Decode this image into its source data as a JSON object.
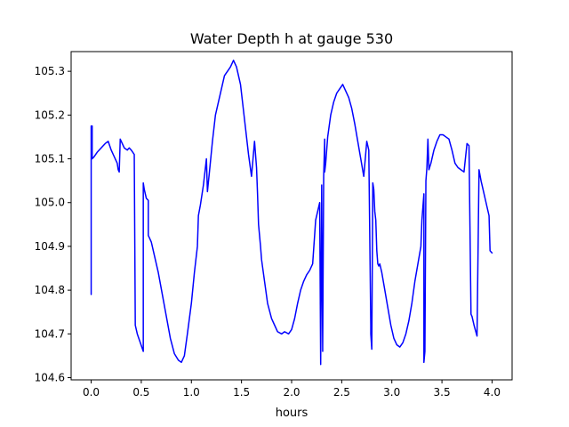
{
  "chart_data": {
    "type": "line",
    "title": "Water Depth h at gauge 530",
    "xlabel": "hours",
    "ylabel": "",
    "xlim": [
      -0.2,
      4.2
    ],
    "ylim": [
      104.595,
      105.345
    ],
    "xticks": [
      0.0,
      0.5,
      1.0,
      1.5,
      2.0,
      2.5,
      3.0,
      3.5,
      4.0
    ],
    "xtick_labels": [
      "0.0",
      "0.5",
      "1.0",
      "1.5",
      "2.0",
      "2.5",
      "3.0",
      "3.5",
      "4.0"
    ],
    "yticks": [
      104.6,
      104.7,
      104.8,
      104.9,
      105.0,
      105.1,
      105.2,
      105.3
    ],
    "ytick_labels": [
      "104.6",
      "104.7",
      "104.8",
      "104.9",
      "105.0",
      "105.1",
      "105.2",
      "105.3"
    ],
    "grid": false,
    "series": [
      {
        "color": "#0000ff",
        "x": [
          0.0,
          0.0,
          0.01,
          0.01,
          0.03,
          0.06,
          0.1,
          0.14,
          0.17,
          0.2,
          0.24,
          0.26,
          0.27,
          0.28,
          0.29,
          0.3,
          0.33,
          0.36,
          0.38,
          0.4,
          0.43,
          0.44,
          0.44,
          0.46,
          0.49,
          0.52,
          0.52,
          0.53,
          0.55,
          0.57,
          0.57,
          0.58,
          0.6,
          0.63,
          0.67,
          0.71,
          0.75,
          0.79,
          0.83,
          0.87,
          0.9,
          0.93,
          0.96,
          1.0,
          1.03,
          1.06,
          1.07,
          1.09,
          1.12,
          1.15,
          1.16,
          1.18,
          1.21,
          1.24,
          1.27,
          1.3,
          1.33,
          1.36,
          1.39,
          1.42,
          1.45,
          1.47,
          1.49,
          1.51,
          1.54,
          1.57,
          1.6,
          1.63,
          1.65,
          1.66,
          1.67,
          1.69,
          1.7,
          1.73,
          1.76,
          1.8,
          1.83,
          1.86,
          1.9,
          1.93,
          1.97,
          2.0,
          2.03,
          2.06,
          2.09,
          2.12,
          2.15,
          2.18,
          2.21,
          2.24,
          2.26,
          2.28,
          2.29,
          2.3,
          2.3,
          2.31,
          2.31,
          2.32,
          2.33,
          2.33,
          2.34,
          2.35,
          2.36,
          2.39,
          2.42,
          2.45,
          2.48,
          2.51,
          2.54,
          2.57,
          2.6,
          2.63,
          2.66,
          2.69,
          2.72,
          2.75,
          2.77,
          2.79,
          2.79,
          2.8,
          2.81,
          2.82,
          2.83,
          2.84,
          2.85,
          2.86,
          2.87,
          2.88,
          2.9,
          2.93,
          2.96,
          2.99,
          3.02,
          3.05,
          3.08,
          3.11,
          3.14,
          3.17,
          3.2,
          3.23,
          3.26,
          3.29,
          3.3,
          3.31,
          3.32,
          3.32,
          3.33,
          3.34,
          3.35,
          3.36,
          3.37,
          3.39,
          3.42,
          3.45,
          3.48,
          3.51,
          3.54,
          3.57,
          3.6,
          3.63,
          3.66,
          3.69,
          3.72,
          3.75,
          3.77,
          3.79,
          3.8,
          3.82,
          3.85,
          3.87,
          3.89,
          3.91,
          3.94,
          3.97,
          3.98,
          4.0
        ],
        "y": [
          104.79,
          105.175,
          105.175,
          105.1,
          105.105,
          105.115,
          105.125,
          105.135,
          105.14,
          105.12,
          105.1,
          105.09,
          105.075,
          105.07,
          105.145,
          105.14,
          105.125,
          105.12,
          105.125,
          105.12,
          105.11,
          104.725,
          104.72,
          104.7,
          104.68,
          104.66,
          105.045,
          105.03,
          105.01,
          105.005,
          104.925,
          104.92,
          104.91,
          104.88,
          104.84,
          104.79,
          104.74,
          104.69,
          104.655,
          104.64,
          104.635,
          104.65,
          104.7,
          104.77,
          104.84,
          104.9,
          104.97,
          104.995,
          105.04,
          105.1,
          105.025,
          105.07,
          105.14,
          105.2,
          105.23,
          105.26,
          105.29,
          105.3,
          105.31,
          105.325,
          105.31,
          105.29,
          105.27,
          105.23,
          105.17,
          105.11,
          105.06,
          105.14,
          105.08,
          105.02,
          104.95,
          104.9,
          104.87,
          104.82,
          104.77,
          104.735,
          104.72,
          104.705,
          104.7,
          104.705,
          104.7,
          104.71,
          104.735,
          104.77,
          104.8,
          104.82,
          104.835,
          104.845,
          104.86,
          104.96,
          104.98,
          105.0,
          104.63,
          105.03,
          105.04,
          104.66,
          104.67,
          105.06,
          105.145,
          105.07,
          105.09,
          105.12,
          105.15,
          105.2,
          105.23,
          105.25,
          105.26,
          105.27,
          105.255,
          105.24,
          105.215,
          105.18,
          105.14,
          105.1,
          105.06,
          105.14,
          105.12,
          104.72,
          104.7,
          104.665,
          105.045,
          105.03,
          104.98,
          104.96,
          104.89,
          104.86,
          104.855,
          104.86,
          104.84,
          104.8,
          104.76,
          104.72,
          104.69,
          104.675,
          104.67,
          104.68,
          104.7,
          104.73,
          104.77,
          104.82,
          104.86,
          104.9,
          104.96,
          104.99,
          105.02,
          104.635,
          104.66,
          105.05,
          105.08,
          105.145,
          105.075,
          105.09,
          105.12,
          105.14,
          105.155,
          105.155,
          105.15,
          105.145,
          105.12,
          105.09,
          105.08,
          105.075,
          105.07,
          105.135,
          105.13,
          104.745,
          104.74,
          104.72,
          104.695,
          105.075,
          105.05,
          105.03,
          105.0,
          104.97,
          104.89,
          104.885
        ]
      }
    ]
  }
}
